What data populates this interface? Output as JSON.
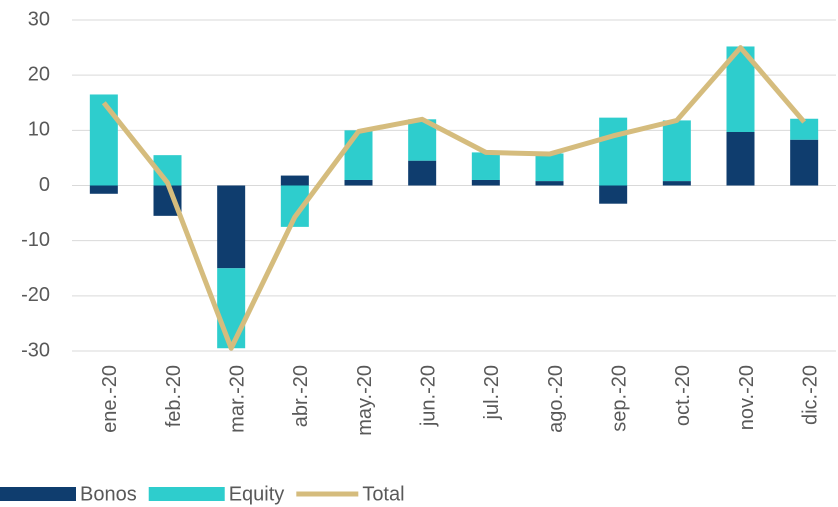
{
  "chart_data": {
    "type": "bar",
    "categories": [
      "ene.-20",
      "feb.-20",
      "mar.-20",
      "abr.-20",
      "may.-20",
      "jun.-20",
      "jul.-20",
      "ago.-20",
      "sep.-20",
      "oct.-20",
      "nov.-20",
      "dic.-20"
    ],
    "series": [
      {
        "name": "Bonos",
        "color": "#0f3d6e",
        "type": "bar",
        "values": [
          -1.5,
          -5.5,
          -15,
          1.8,
          1,
          4.5,
          1,
          0.8,
          -3.3,
          0.8,
          9.7,
          8.3
        ]
      },
      {
        "name": "Equity",
        "color": "#2ecdcd",
        "type": "bar",
        "values": [
          16.5,
          5.5,
          -14.5,
          -7.5,
          9,
          7.5,
          5,
          5,
          12.3,
          11,
          15.5,
          3.8
        ]
      },
      {
        "name": "Total",
        "color": "#d5bc7d",
        "type": "line",
        "values": [
          15,
          0.5,
          -29.5,
          -5.7,
          9.8,
          12,
          6,
          5.7,
          9,
          11.8,
          25,
          11.5
        ]
      }
    ],
    "ylim": [
      -30,
      30
    ],
    "yticks": [
      -30,
      -20,
      -10,
      0,
      10,
      20,
      30
    ],
    "grid": true,
    "stacked": true,
    "legend": "bottom"
  }
}
